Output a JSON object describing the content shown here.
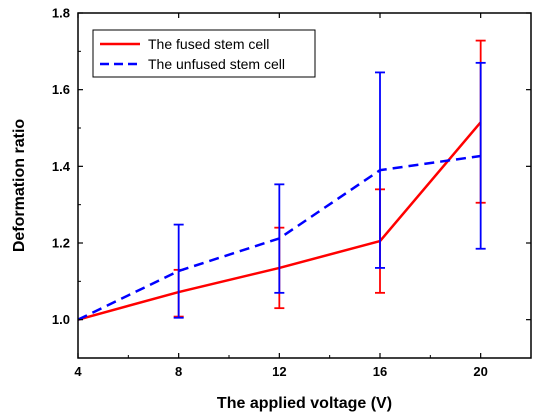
{
  "chart_data": {
    "type": "line",
    "title": "",
    "xlabel": "The applied voltage (V)",
    "ylabel": "Deformation ratio",
    "xlim": [
      4,
      22
    ],
    "ylim": [
      0.9,
      1.8
    ],
    "xticks": [
      4,
      8,
      12,
      16,
      20
    ],
    "xtick_labels": [
      "4",
      "8",
      "12",
      "16",
      "20"
    ],
    "yticks": [
      1.0,
      1.2,
      1.4,
      1.6,
      1.8
    ],
    "ytick_labels": [
      "1.0",
      "1.2",
      "1.4",
      "1.6",
      "1.8"
    ],
    "grid": false,
    "legend_position": "top-left",
    "series": [
      {
        "name": "The fused stem cell",
        "color": "#ff0000",
        "style": "solid",
        "x": [
          4,
          8,
          12,
          16,
          20
        ],
        "y": [
          1.0,
          1.072,
          1.135,
          1.205,
          1.515
        ],
        "err_low": [
          1.0,
          1.008,
          1.03,
          1.07,
          1.305
        ],
        "err_high": [
          1.0,
          1.13,
          1.24,
          1.34,
          1.728
        ]
      },
      {
        "name": "The unfused stem cell",
        "color": "#0000ff",
        "style": "dashed",
        "x": [
          4,
          8,
          12,
          16,
          20
        ],
        "y": [
          1.0,
          1.127,
          1.212,
          1.39,
          1.427
        ],
        "err_low": [
          1.0,
          1.005,
          1.07,
          1.135,
          1.185
        ],
        "err_high": [
          1.0,
          1.248,
          1.353,
          1.645,
          1.67
        ]
      }
    ]
  }
}
